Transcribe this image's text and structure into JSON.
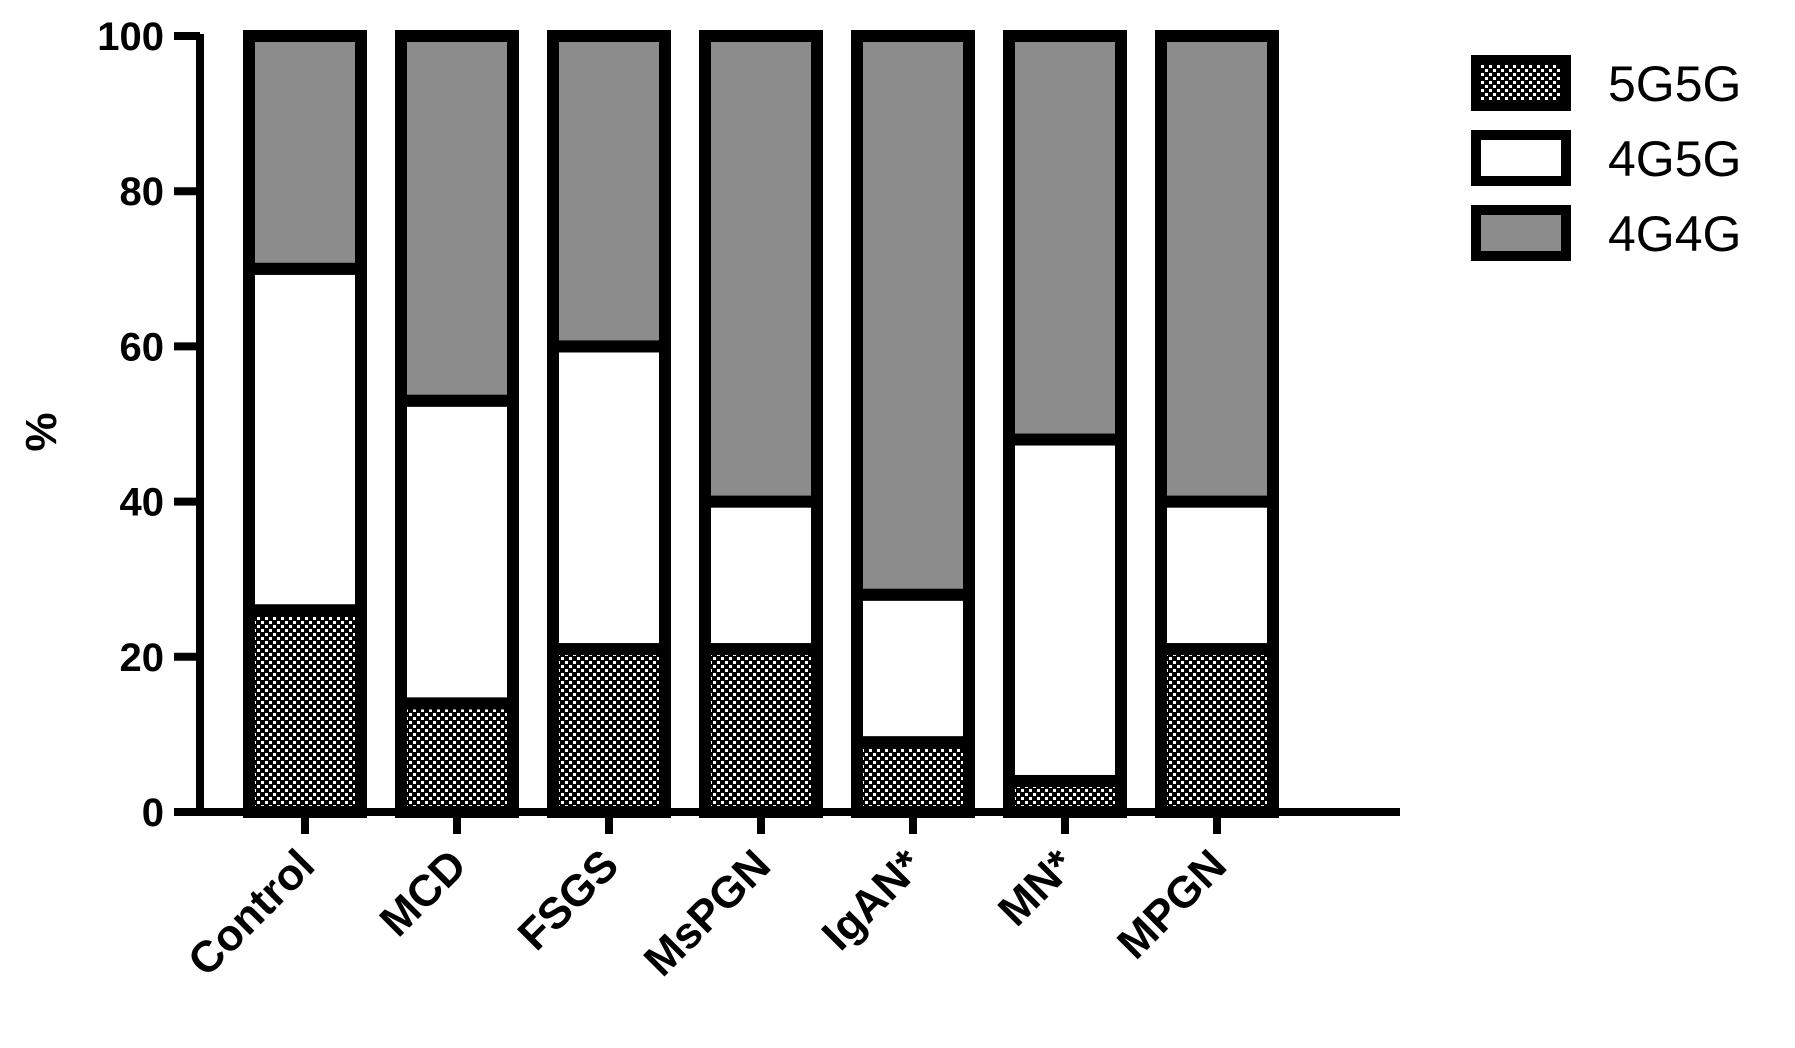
{
  "chart_data": {
    "type": "bar",
    "stacked": true,
    "categories": [
      "Control",
      "MCD",
      "FSGS",
      "MsPGN",
      "IgAN*",
      "MN*",
      "MPGN"
    ],
    "series": [
      {
        "name": "5G5G",
        "values": [
          26,
          14,
          21,
          21,
          9,
          4,
          21
        ],
        "pattern": "dotted"
      },
      {
        "name": "4G5G",
        "values": [
          44,
          39,
          39,
          19,
          19,
          44,
          19
        ],
        "color": "#ffffff"
      },
      {
        "name": "4G4G",
        "values": [
          30,
          47,
          40,
          60,
          72,
          52,
          60
        ],
        "color": "#8c8c8c"
      }
    ],
    "title": "",
    "xlabel": "",
    "ylabel": "%",
    "ylim": [
      0,
      100
    ],
    "yticks": [
      "0",
      "20",
      "40",
      "60",
      "80",
      "100"
    ],
    "legend": {
      "position": "top-right",
      "entries": [
        "5G5G",
        "4G5G",
        "4G4G"
      ]
    },
    "grid": false
  }
}
